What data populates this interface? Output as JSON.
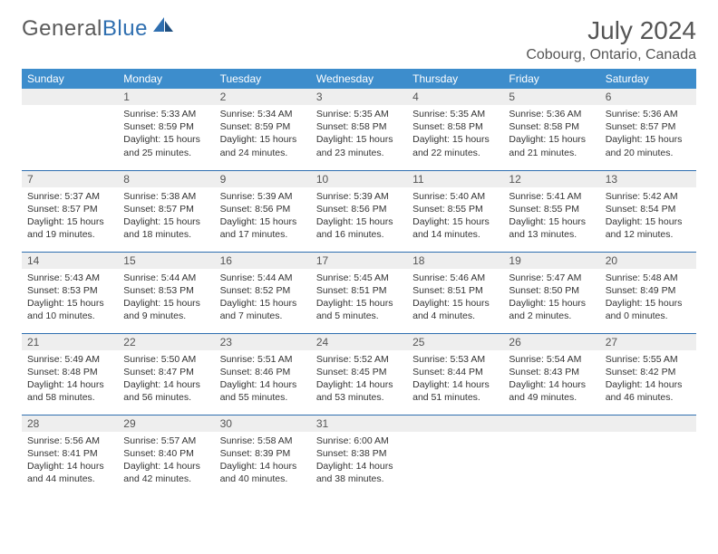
{
  "colors": {
    "header_bg": "#3d8dcc",
    "header_text": "#ffffff",
    "daynum_bg": "#eeeeee",
    "rule": "#2f6fb0",
    "body_text": "#333333",
    "title_text": "#555555",
    "logo_gray": "#5a5a5a",
    "logo_blue": "#2f6fb0",
    "page_bg": "#ffffff"
  },
  "fonts": {
    "family": "Arial, Helvetica, sans-serif",
    "month_title_pt": 28,
    "location_pt": 16,
    "weekday_pt": 12,
    "daynum_pt": 12,
    "daytext_pt": 10.5
  },
  "logo": {
    "word1": "General",
    "word2": "Blue"
  },
  "title": {
    "month": "July 2024",
    "location": "Cobourg, Ontario, Canada"
  },
  "weekdays": [
    "Sunday",
    "Monday",
    "Tuesday",
    "Wednesday",
    "Thursday",
    "Friday",
    "Saturday"
  ],
  "start_weekday_index": 1,
  "days": [
    {
      "n": 1,
      "sunrise": "5:33 AM",
      "sunset": "8:59 PM",
      "daylight": "15 hours and 25 minutes."
    },
    {
      "n": 2,
      "sunrise": "5:34 AM",
      "sunset": "8:59 PM",
      "daylight": "15 hours and 24 minutes."
    },
    {
      "n": 3,
      "sunrise": "5:35 AM",
      "sunset": "8:58 PM",
      "daylight": "15 hours and 23 minutes."
    },
    {
      "n": 4,
      "sunrise": "5:35 AM",
      "sunset": "8:58 PM",
      "daylight": "15 hours and 22 minutes."
    },
    {
      "n": 5,
      "sunrise": "5:36 AM",
      "sunset": "8:58 PM",
      "daylight": "15 hours and 21 minutes."
    },
    {
      "n": 6,
      "sunrise": "5:36 AM",
      "sunset": "8:57 PM",
      "daylight": "15 hours and 20 minutes."
    },
    {
      "n": 7,
      "sunrise": "5:37 AM",
      "sunset": "8:57 PM",
      "daylight": "15 hours and 19 minutes."
    },
    {
      "n": 8,
      "sunrise": "5:38 AM",
      "sunset": "8:57 PM",
      "daylight": "15 hours and 18 minutes."
    },
    {
      "n": 9,
      "sunrise": "5:39 AM",
      "sunset": "8:56 PM",
      "daylight": "15 hours and 17 minutes."
    },
    {
      "n": 10,
      "sunrise": "5:39 AM",
      "sunset": "8:56 PM",
      "daylight": "15 hours and 16 minutes."
    },
    {
      "n": 11,
      "sunrise": "5:40 AM",
      "sunset": "8:55 PM",
      "daylight": "15 hours and 14 minutes."
    },
    {
      "n": 12,
      "sunrise": "5:41 AM",
      "sunset": "8:55 PM",
      "daylight": "15 hours and 13 minutes."
    },
    {
      "n": 13,
      "sunrise": "5:42 AM",
      "sunset": "8:54 PM",
      "daylight": "15 hours and 12 minutes."
    },
    {
      "n": 14,
      "sunrise": "5:43 AM",
      "sunset": "8:53 PM",
      "daylight": "15 hours and 10 minutes."
    },
    {
      "n": 15,
      "sunrise": "5:44 AM",
      "sunset": "8:53 PM",
      "daylight": "15 hours and 9 minutes."
    },
    {
      "n": 16,
      "sunrise": "5:44 AM",
      "sunset": "8:52 PM",
      "daylight": "15 hours and 7 minutes."
    },
    {
      "n": 17,
      "sunrise": "5:45 AM",
      "sunset": "8:51 PM",
      "daylight": "15 hours and 5 minutes."
    },
    {
      "n": 18,
      "sunrise": "5:46 AM",
      "sunset": "8:51 PM",
      "daylight": "15 hours and 4 minutes."
    },
    {
      "n": 19,
      "sunrise": "5:47 AM",
      "sunset": "8:50 PM",
      "daylight": "15 hours and 2 minutes."
    },
    {
      "n": 20,
      "sunrise": "5:48 AM",
      "sunset": "8:49 PM",
      "daylight": "15 hours and 0 minutes."
    },
    {
      "n": 21,
      "sunrise": "5:49 AM",
      "sunset": "8:48 PM",
      "daylight": "14 hours and 58 minutes."
    },
    {
      "n": 22,
      "sunrise": "5:50 AM",
      "sunset": "8:47 PM",
      "daylight": "14 hours and 56 minutes."
    },
    {
      "n": 23,
      "sunrise": "5:51 AM",
      "sunset": "8:46 PM",
      "daylight": "14 hours and 55 minutes."
    },
    {
      "n": 24,
      "sunrise": "5:52 AM",
      "sunset": "8:45 PM",
      "daylight": "14 hours and 53 minutes."
    },
    {
      "n": 25,
      "sunrise": "5:53 AM",
      "sunset": "8:44 PM",
      "daylight": "14 hours and 51 minutes."
    },
    {
      "n": 26,
      "sunrise": "5:54 AM",
      "sunset": "8:43 PM",
      "daylight": "14 hours and 49 minutes."
    },
    {
      "n": 27,
      "sunrise": "5:55 AM",
      "sunset": "8:42 PM",
      "daylight": "14 hours and 46 minutes."
    },
    {
      "n": 28,
      "sunrise": "5:56 AM",
      "sunset": "8:41 PM",
      "daylight": "14 hours and 44 minutes."
    },
    {
      "n": 29,
      "sunrise": "5:57 AM",
      "sunset": "8:40 PM",
      "daylight": "14 hours and 42 minutes."
    },
    {
      "n": 30,
      "sunrise": "5:58 AM",
      "sunset": "8:39 PM",
      "daylight": "14 hours and 40 minutes."
    },
    {
      "n": 31,
      "sunrise": "6:00 AM",
      "sunset": "8:38 PM",
      "daylight": "14 hours and 38 minutes."
    }
  ],
  "labels": {
    "sunrise": "Sunrise:",
    "sunset": "Sunset:",
    "daylight": "Daylight:"
  }
}
